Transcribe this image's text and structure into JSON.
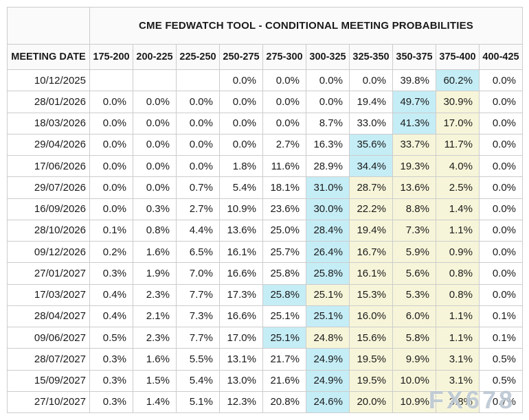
{
  "table": {
    "title": "CME FEDWATCH TOOL - CONDITIONAL MEETING PROBABILITIES",
    "columns": [
      "MEETING DATE",
      "175-200",
      "200-225",
      "225-250",
      "250-275",
      "275-300",
      "300-325",
      "325-350",
      "350-375",
      "375-400",
      "400-425"
    ],
    "rows": [
      {
        "date": "10/12/2025",
        "values": [
          "",
          "",
          "",
          "0.0%",
          "0.0%",
          "0.0%",
          "0.0%",
          "39.8%",
          "60.2%",
          "0.0%"
        ],
        "hl": [
          "",
          "",
          "",
          "",
          "",
          "",
          "",
          "",
          "c",
          ""
        ]
      },
      {
        "date": "28/01/2026",
        "values": [
          "0.0%",
          "0.0%",
          "0.0%",
          "0.0%",
          "0.0%",
          "0.0%",
          "19.4%",
          "49.7%",
          "30.9%",
          "0.0%"
        ],
        "hl": [
          "",
          "",
          "",
          "",
          "",
          "",
          "",
          "c",
          "y",
          ""
        ]
      },
      {
        "date": "18/03/2026",
        "values": [
          "0.0%",
          "0.0%",
          "0.0%",
          "0.0%",
          "0.0%",
          "8.7%",
          "33.0%",
          "41.3%",
          "17.0%",
          "0.0%"
        ],
        "hl": [
          "",
          "",
          "",
          "",
          "",
          "",
          "",
          "c",
          "y",
          ""
        ]
      },
      {
        "date": "29/04/2026",
        "values": [
          "0.0%",
          "0.0%",
          "0.0%",
          "0.0%",
          "2.7%",
          "16.3%",
          "35.6%",
          "33.7%",
          "11.7%",
          "0.0%"
        ],
        "hl": [
          "",
          "",
          "",
          "",
          "",
          "",
          "c",
          "y",
          "y",
          ""
        ]
      },
      {
        "date": "17/06/2026",
        "values": [
          "0.0%",
          "0.0%",
          "0.0%",
          "1.8%",
          "11.6%",
          "28.9%",
          "34.4%",
          "19.3%",
          "4.0%",
          "0.0%"
        ],
        "hl": [
          "",
          "",
          "",
          "",
          "",
          "",
          "c",
          "y",
          "y",
          ""
        ]
      },
      {
        "date": "29/07/2026",
        "values": [
          "0.0%",
          "0.0%",
          "0.7%",
          "5.4%",
          "18.1%",
          "31.0%",
          "28.7%",
          "13.6%",
          "2.5%",
          "0.0%"
        ],
        "hl": [
          "",
          "",
          "",
          "",
          "",
          "c",
          "y",
          "y",
          "y",
          ""
        ]
      },
      {
        "date": "16/09/2026",
        "values": [
          "0.0%",
          "0.3%",
          "2.7%",
          "10.9%",
          "23.6%",
          "30.0%",
          "22.2%",
          "8.8%",
          "1.4%",
          "0.0%"
        ],
        "hl": [
          "",
          "",
          "",
          "",
          "",
          "c",
          "y",
          "y",
          "y",
          ""
        ]
      },
      {
        "date": "28/10/2026",
        "values": [
          "0.1%",
          "0.8%",
          "4.4%",
          "13.6%",
          "25.0%",
          "28.4%",
          "19.4%",
          "7.3%",
          "1.1%",
          "0.0%"
        ],
        "hl": [
          "",
          "",
          "",
          "",
          "",
          "c",
          "y",
          "y",
          "y",
          ""
        ]
      },
      {
        "date": "09/12/2026",
        "values": [
          "0.2%",
          "1.6%",
          "6.5%",
          "16.1%",
          "25.7%",
          "26.4%",
          "16.7%",
          "5.9%",
          "0.9%",
          "0.0%"
        ],
        "hl": [
          "",
          "",
          "",
          "",
          "",
          "c",
          "y",
          "y",
          "y",
          ""
        ]
      },
      {
        "date": "27/01/2027",
        "values": [
          "0.3%",
          "1.9%",
          "7.0%",
          "16.6%",
          "25.8%",
          "25.8%",
          "16.1%",
          "5.6%",
          "0.8%",
          "0.0%"
        ],
        "hl": [
          "",
          "",
          "",
          "",
          "",
          "c",
          "y",
          "y",
          "y",
          ""
        ]
      },
      {
        "date": "17/03/2027",
        "values": [
          "0.4%",
          "2.3%",
          "7.7%",
          "17.3%",
          "25.8%",
          "25.1%",
          "15.3%",
          "5.3%",
          "0.8%",
          "0.0%"
        ],
        "hl": [
          "",
          "",
          "",
          "",
          "c",
          "y",
          "y",
          "y",
          "y",
          ""
        ]
      },
      {
        "date": "28/04/2027",
        "values": [
          "0.4%",
          "2.1%",
          "7.3%",
          "16.6%",
          "25.1%",
          "25.1%",
          "16.0%",
          "6.0%",
          "1.1%",
          "0.1%"
        ],
        "hl": [
          "",
          "",
          "",
          "",
          "",
          "c",
          "y",
          "y",
          "y",
          ""
        ]
      },
      {
        "date": "09/06/2027",
        "values": [
          "0.5%",
          "2.3%",
          "7.7%",
          "17.0%",
          "25.1%",
          "24.8%",
          "15.6%",
          "5.8%",
          "1.1%",
          "0.1%"
        ],
        "hl": [
          "",
          "",
          "",
          "",
          "c",
          "y",
          "y",
          "y",
          "y",
          ""
        ]
      },
      {
        "date": "28/07/2027",
        "values": [
          "0.3%",
          "1.6%",
          "5.5%",
          "13.1%",
          "21.7%",
          "24.9%",
          "19.5%",
          "9.9%",
          "3.1%",
          "0.5%"
        ],
        "hl": [
          "",
          "",
          "",
          "",
          "",
          "c",
          "y",
          "y",
          "y",
          ""
        ]
      },
      {
        "date": "15/09/2027",
        "values": [
          "0.3%",
          "1.5%",
          "5.4%",
          "13.0%",
          "21.6%",
          "24.9%",
          "19.5%",
          "10.0%",
          "3.1%",
          "0.5%"
        ],
        "hl": [
          "",
          "",
          "",
          "",
          "",
          "c",
          "y",
          "y",
          "y",
          ""
        ]
      },
      {
        "date": "27/10/2027",
        "values": [
          "0.3%",
          "1.4%",
          "5.1%",
          "12.3%",
          "20.8%",
          "24.6%",
          "20.0%",
          "10.9%",
          "3.8%",
          "0.7%"
        ],
        "hl": [
          "",
          "",
          "",
          "",
          "",
          "c",
          "y",
          "y",
          "y",
          ""
        ]
      }
    ]
  },
  "colors": {
    "highlight_cyan": "#c5edf6",
    "highlight_yellow": "#f7f5d9",
    "header_bg": "#fafafa",
    "border": "#cccccc"
  },
  "watermark": {
    "text": "FX678"
  }
}
